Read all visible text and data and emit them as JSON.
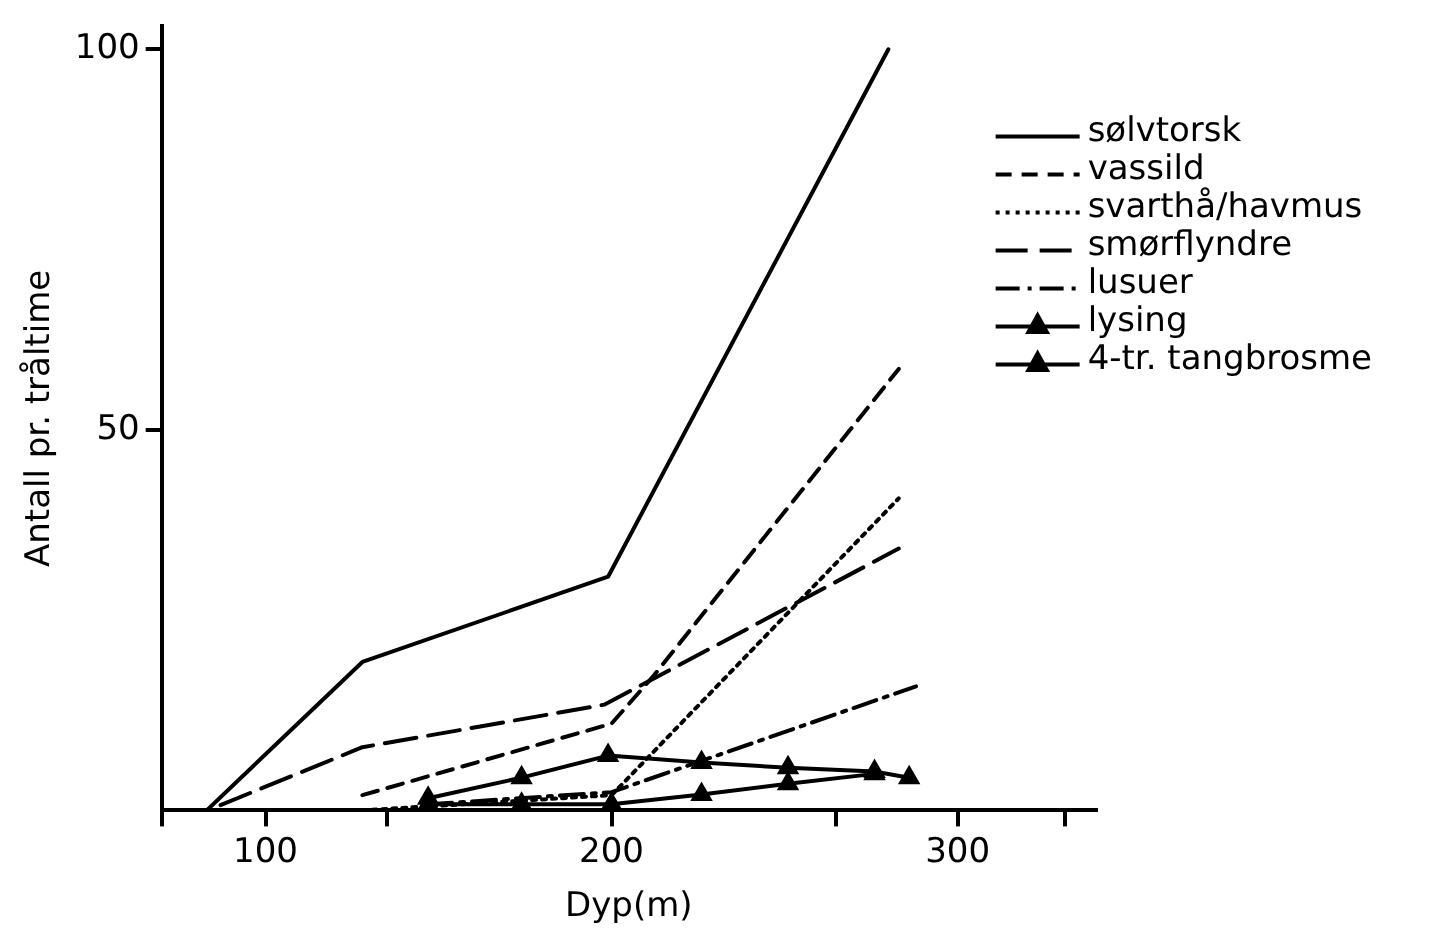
{
  "chart_data": {
    "type": "line",
    "xlabel": "Dyp(m)",
    "ylabel": "Antall pr. tråltime",
    "xlim": [
      70,
      340
    ],
    "ylim": [
      0,
      103
    ],
    "xticks": [
      {
        "value": 70,
        "label": null
      },
      100,
      {
        "value": 135,
        "label": null
      },
      200,
      {
        "value": 265,
        "label": null
      },
      300,
      {
        "value": 331,
        "label": null
      }
    ],
    "yticks": [
      50,
      100
    ],
    "grid": false,
    "legend": "top right",
    "tick_labels": true,
    "series": [
      {
        "name": "sølvtorsk",
        "color": "#000000",
        "line_style": "solid",
        "marker": "none",
        "x": [
          83,
          128,
          199,
          280
        ],
        "values": [
          0,
          19.5,
          30.7,
          100
        ]
      },
      {
        "name": "vassild",
        "color": "#000000",
        "line_style": "dashed",
        "marker": "none",
        "x": [
          128,
          200,
          212,
          283
        ],
        "values": [
          2,
          11.4,
          17.6,
          58
        ]
      },
      {
        "name": "svarthå/havmus",
        "color": "#000000",
        "line_style": "dotted",
        "marker": "none",
        "x": [
          128,
          200,
          283
        ],
        "values": [
          0,
          2,
          41
        ]
      },
      {
        "name": "smørflyndre",
        "color": "#000000",
        "line_style": "longdash",
        "marker": "none",
        "x": [
          87,
          128,
          198,
          283
        ],
        "values": [
          0.7,
          8.3,
          13.9,
          34.4
        ]
      },
      {
        "name": "lusuer",
        "color": "#000000",
        "line_style": "dashdot",
        "marker": "none",
        "x": [
          147,
          200,
          288
        ],
        "values": [
          0.8,
          2.4,
          16.3
        ]
      },
      {
        "name": "lysing",
        "color": "#000000",
        "line_style": "solid",
        "marker": "triangle",
        "x": [
          147,
          174,
          200,
          226,
          251,
          276
        ],
        "values": [
          0.8,
          0.8,
          0.8,
          2.1,
          3.5,
          4.8
        ]
      },
      {
        "name": "4-tr. tangbrosme",
        "color": "#000000",
        "line_style": "solid",
        "marker": "triangle",
        "x": [
          147,
          174,
          199,
          226,
          251,
          276,
          286
        ],
        "values": [
          1.6,
          4.3,
          7.2,
          6.3,
          5.6,
          5.1,
          4.3
        ]
      }
    ]
  }
}
